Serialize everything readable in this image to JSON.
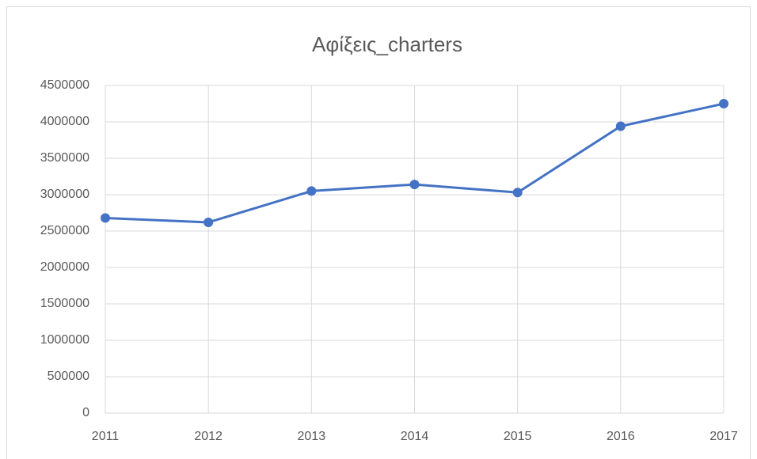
{
  "chart_data": {
    "type": "line",
    "title": "Αφίξεις_charters",
    "categories": [
      "2011",
      "2012",
      "2013",
      "2014",
      "2015",
      "2016",
      "2017"
    ],
    "series": [
      {
        "name": "Αφίξεις_charters",
        "color": "#4472c4",
        "values": [
          2680000,
          2620000,
          3050000,
          3140000,
          3030000,
          3940000,
          4250000
        ]
      }
    ],
    "ylim": [
      0,
      4500000
    ],
    "yticks": [
      0,
      500000,
      1000000,
      1500000,
      2000000,
      2500000,
      3000000,
      3500000,
      4000000,
      4500000
    ],
    "grid": true,
    "legend": false
  }
}
